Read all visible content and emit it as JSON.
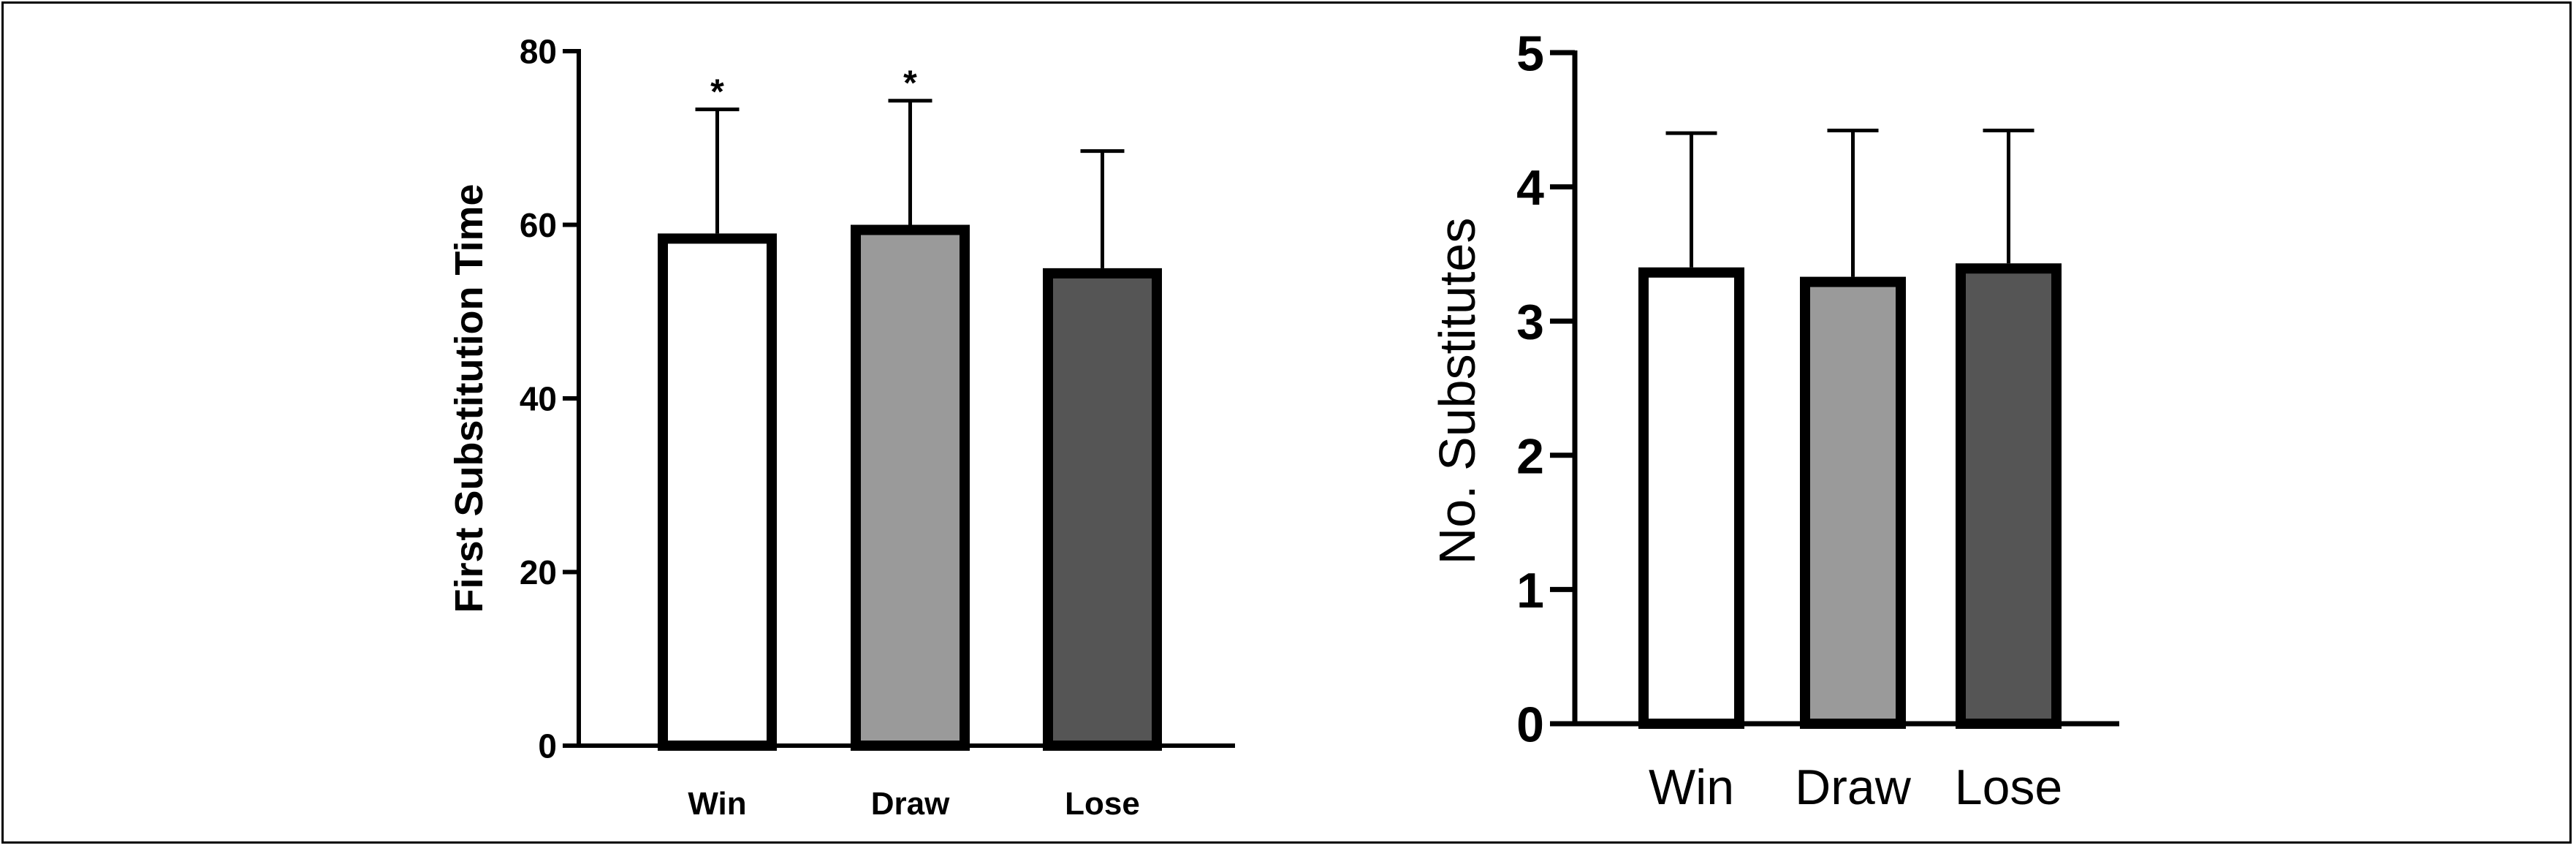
{
  "chart_data": [
    {
      "type": "bar",
      "categories": [
        "Win",
        "Draw",
        "Lose"
      ],
      "values": [
        59,
        60,
        55
      ],
      "error_upper": [
        73.3,
        74.3,
        68.5
      ],
      "significance": [
        "*",
        "*",
        ""
      ],
      "bar_colors": [
        "#ffffff",
        "#9a9a9a",
        "#555555"
      ],
      "ylabel": "First Substitution Time",
      "xlabel": "",
      "ylim": [
        0,
        80
      ],
      "yticks": [
        "0",
        "20",
        "40",
        "60",
        "80"
      ],
      "grid": false,
      "legend": "none"
    },
    {
      "type": "bar",
      "categories": [
        "Win",
        "Draw",
        "Lose"
      ],
      "values": [
        3.4,
        3.33,
        3.43
      ],
      "error_upper": [
        4.4,
        4.42,
        4.42
      ],
      "significance": [
        "",
        "",
        ""
      ],
      "bar_colors": [
        "#ffffff",
        "#9a9a9a",
        "#555555"
      ],
      "ylabel": "No. Substitutes",
      "xlabel": "",
      "ylim": [
        0,
        5
      ],
      "yticks": [
        "0",
        "1",
        "2",
        "3",
        "4",
        "5"
      ],
      "grid": false,
      "legend": "none"
    }
  ]
}
